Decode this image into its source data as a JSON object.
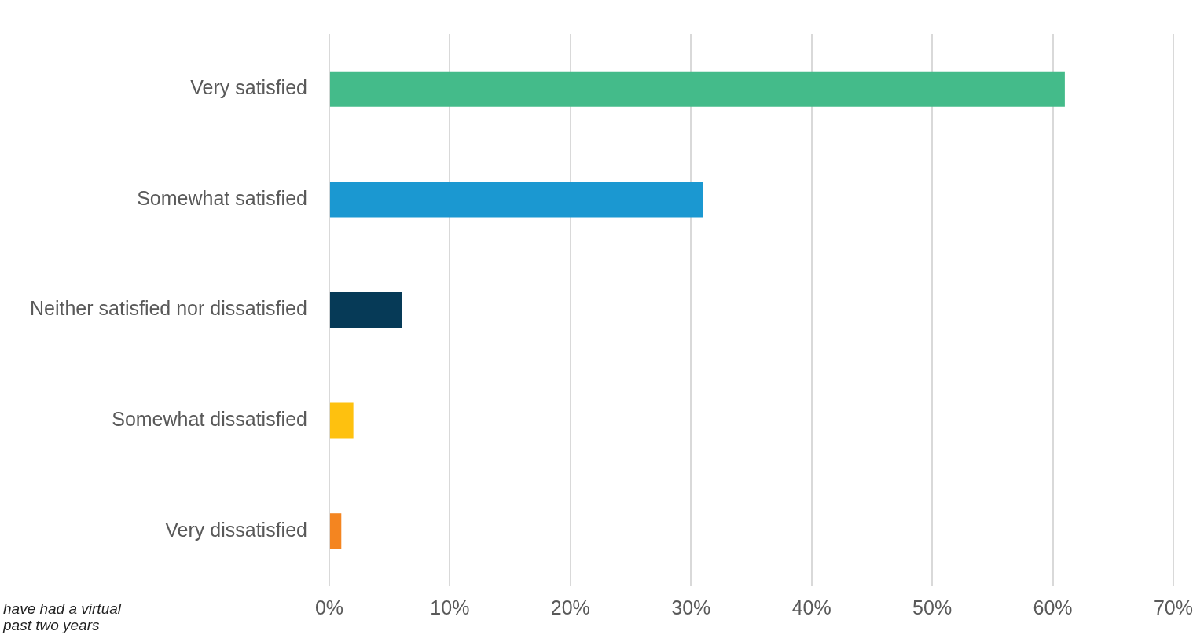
{
  "chart_data": {
    "type": "bar",
    "orientation": "horizontal",
    "categories": [
      "Very satisfied",
      "Somewhat satisfied",
      "Neither satisfied nor dissatisfied",
      "Somewhat dissatisfied",
      "Very dissatisfied"
    ],
    "values": [
      61,
      31,
      6,
      2,
      1
    ],
    "colors": [
      "#44bb8a",
      "#1b98d1",
      "#063a57",
      "#fec10f",
      "#f48520"
    ],
    "xlim": [
      0,
      70
    ],
    "xticks": [
      {
        "value": 0,
        "label": "0%"
      },
      {
        "value": 10,
        "label": "10%"
      },
      {
        "value": 20,
        "label": "20%"
      },
      {
        "value": 30,
        "label": "30%"
      },
      {
        "value": 40,
        "label": "40%"
      },
      {
        "value": 50,
        "label": "50%"
      },
      {
        "value": 60,
        "label": "60%"
      },
      {
        "value": 70,
        "label": "70%"
      }
    ],
    "grid": "x",
    "annotations": [
      "have had a virtual\npast two years"
    ]
  }
}
